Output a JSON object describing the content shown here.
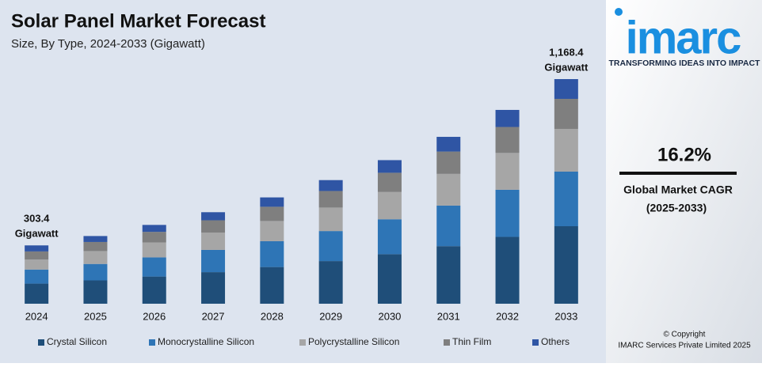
{
  "chart_data": {
    "type": "stacked-bar",
    "title": "Solar Panel Market Forecast",
    "subtitle": "Size, By Type, 2024-2033 (Gigawatt)",
    "categories": [
      "2024",
      "2025",
      "2026",
      "2027",
      "2028",
      "2029",
      "2030",
      "2031",
      "2032",
      "2033"
    ],
    "series": [
      {
        "name": "Crystal Silicon",
        "color": "#1f4e79",
        "values": [
          104.6,
          121.4,
          141.4,
          164.2,
          190.8,
          221.8,
          257.7,
          299.5,
          347.8,
          403.2
        ]
      },
      {
        "name": "Monocrystalline Silicon",
        "color": "#2e75b6",
        "values": [
          73.2,
          85.5,
          99.6,
          115.7,
          134.4,
          156.2,
          181.5,
          210.9,
          245.0,
          283.9
        ]
      },
      {
        "name": "Polycrystalline Silicon",
        "color": "#a6a6a6",
        "values": [
          52.3,
          67.0,
          77.9,
          90.4,
          105.1,
          122.2,
          141.9,
          164.9,
          191.5,
          222.2
        ]
      },
      {
        "name": "Thin Film",
        "color": "#7f7f7f",
        "values": [
          41.9,
          47.2,
          54.9,
          63.8,
          74.1,
          86.2,
          100.1,
          116.3,
          135.1,
          156.3
        ]
      },
      {
        "name": "Others",
        "color": "#2f55a4",
        "values": [
          31.4,
          31.0,
          36.1,
          41.9,
          48.6,
          56.6,
          65.7,
          76.4,
          88.7,
          102.8
        ]
      }
    ],
    "annotations": [
      {
        "value": 303.4,
        "label": "303.4",
        "unit": "Gigawatt"
      },
      {
        "value": 1168.4,
        "label": "1,168.4",
        "unit": "Gigawatt"
      }
    ]
  },
  "branding": {
    "logo": "imarc",
    "tagline": "TRANSFORMING IDEAS INTO IMPACT",
    "cagr": {
      "value": 16.2,
      "label": "16.2%"
    },
    "cagr_title": "Global Market CAGR",
    "cagr_period": "(2025-2033)",
    "copyright": "© Copyright",
    "company": "IMARC Services Private Limited 2025"
  }
}
